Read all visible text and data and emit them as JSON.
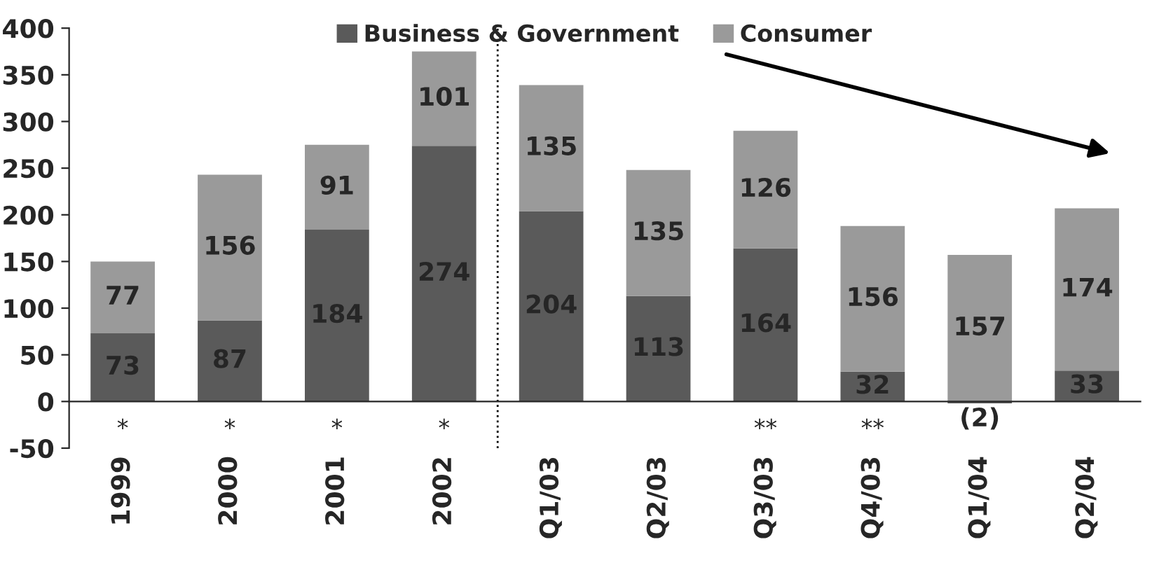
{
  "chart_data": {
    "type": "bar",
    "stacked": true,
    "categories": [
      "1999",
      "2000",
      "2001",
      "2002",
      "Q1/03",
      "Q2/03",
      "Q3/03",
      "Q4/03",
      "Q1/04",
      "Q2/04"
    ],
    "series": [
      {
        "name": "Business & Government",
        "color": "#5a5a5a",
        "values": [
          73,
          87,
          184,
          274,
          204,
          113,
          164,
          32,
          -2,
          33
        ],
        "value_labels": [
          "73",
          "87",
          "184",
          "274",
          "204",
          "113",
          "164",
          "32",
          "(2)",
          "33"
        ]
      },
      {
        "name": "Consumer",
        "color": "#9a9a9a",
        "values": [
          77,
          156,
          91,
          101,
          135,
          135,
          126,
          156,
          157,
          174
        ],
        "value_labels": [
          "77",
          "156",
          "91",
          "101",
          "135",
          "135",
          "126",
          "156",
          "157",
          "174"
        ]
      }
    ],
    "ylim": [
      -50,
      400
    ],
    "yticks": [
      -50,
      0,
      50,
      100,
      150,
      200,
      250,
      300,
      350,
      400
    ],
    "grid": false,
    "legend": "top",
    "annotations": [
      "*",
      "*",
      "*",
      "*",
      "**",
      "**"
    ]
  }
}
